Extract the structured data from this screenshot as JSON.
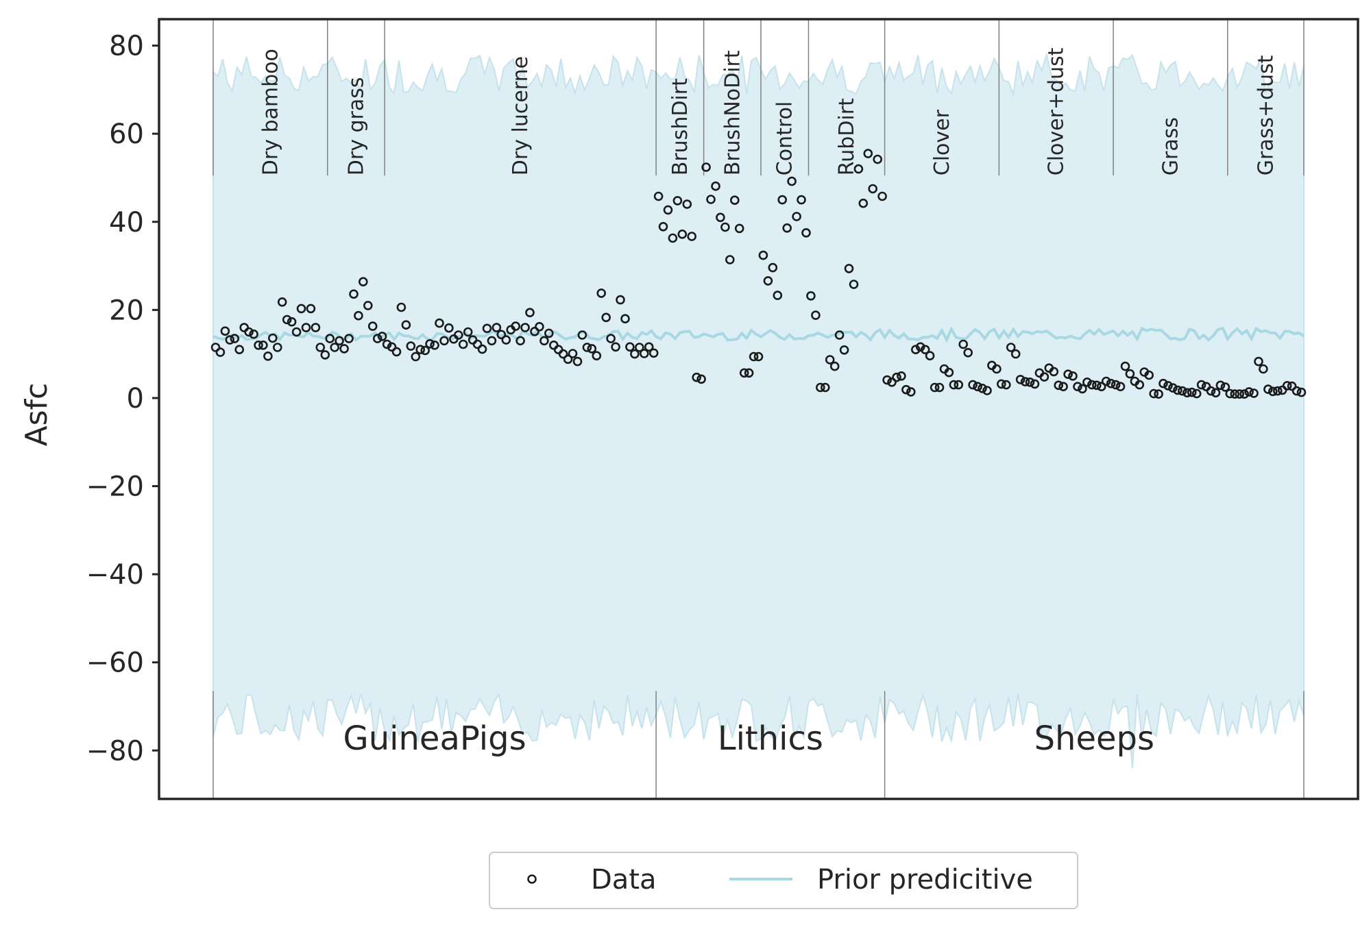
{
  "chart_data": {
    "type": "scatter",
    "ylabel": "Asfc",
    "xlabel": "",
    "ylim": [
      -91,
      86
    ],
    "yticks": [
      80,
      60,
      40,
      20,
      0,
      -20,
      -40,
      -60,
      -80
    ],
    "ytick_labels": [
      "80",
      "60",
      "40",
      "20",
      "0",
      "−20",
      "−40",
      "−60",
      "−80"
    ],
    "grid": false,
    "legend_placement": "bottom-center, below plot",
    "legend": {
      "data_label": "Data",
      "prior_label": "Prior predicitive"
    },
    "colors": {
      "band": "#ddeff5",
      "band_edge": "#c6e2ec",
      "line": "#a8d8e2",
      "points": "#1a1a1a",
      "axes": "#262626",
      "dividers": "#808080"
    },
    "groups": [
      {
        "name": "GuineaPigs",
        "subgroups": [
          {
            "name": "Dry bamboo",
            "values": [
              11.5,
              10.4,
              15.2,
              13.2,
              13.5,
              11.0,
              16.0,
              15.0,
              14.5,
              12.0,
              12.0,
              9.5,
              13.6,
              11.5,
              21.8,
              17.8,
              17.3,
              15.0,
              20.3,
              16.0,
              20.3,
              16.0,
              11.5,
              9.8
            ]
          },
          {
            "name": "Dry grass",
            "values": [
              13.5,
              11.5,
              13.0,
              11.2,
              13.5,
              23.6,
              18.7,
              26.4,
              21.0,
              16.3,
              13.5,
              14.0
            ]
          },
          {
            "name": "Dry lucerne",
            "values": [
              12.2,
              11.6,
              10.5,
              20.6,
              16.6,
              11.8,
              9.4,
              11.0,
              10.8,
              12.3,
              12.0,
              17.0,
              13.0,
              15.9,
              13.4,
              14.3,
              12.2,
              15.0,
              13.2,
              12.2,
              11.1,
              15.8,
              13.0,
              16.0,
              14.4,
              13.2,
              15.5,
              16.3,
              13.0,
              16.0,
              19.4,
              15.1,
              16.2,
              13.0,
              14.7,
              12.0,
              11.0,
              10.0,
              8.8,
              10.1,
              8.3,
              14.3,
              11.5,
              11.2,
              9.6,
              23.8,
              18.3,
              13.5,
              11.6,
              22.3,
              18.0,
              11.6,
              10.0,
              11.5,
              10.1,
              11.6,
              10.2
            ]
          }
        ]
      },
      {
        "name": "Lithics",
        "subgroups": [
          {
            "name": "BrushDirt",
            "values": [
              45.8,
              38.9,
              42.7,
              36.3,
              44.8,
              37.2,
              44.0,
              36.7,
              4.7,
              4.3
            ]
          },
          {
            "name": "BrushNoDirt",
            "values": [
              52.4,
              45.1,
              48.1,
              41.0,
              38.8,
              31.4,
              44.9,
              38.5,
              5.7,
              5.7,
              9.4,
              9.4
            ]
          },
          {
            "name": "Control",
            "values": [
              32.4,
              26.6,
              29.6,
              23.3,
              45.0,
              38.6,
              49.2,
              41.2,
              45.0,
              37.5
            ]
          },
          {
            "name": "RubDirt",
            "values": [
              23.2,
              18.8,
              2.4,
              2.4,
              8.7,
              7.2,
              14.3,
              10.9,
              29.4,
              25.8,
              52.0,
              44.2,
              55.5,
              47.5,
              54.2,
              45.8
            ]
          }
        ]
      },
      {
        "name": "Sheeps",
        "subgroups": [
          {
            "name": "Clover",
            "values": [
              4.1,
              3.6,
              4.7,
              5.0,
              1.9,
              1.4,
              11.0,
              11.6,
              11.0,
              9.6,
              2.4,
              2.4,
              6.6,
              5.8,
              3.0,
              3.0,
              12.2,
              10.3,
              3.0,
              2.6,
              2.2,
              1.7,
              7.4,
              6.6
            ]
          },
          {
            "name": "Clover+dust",
            "values": [
              3.2,
              3.0,
              11.5,
              10.0,
              4.2,
              3.7,
              3.6,
              3.2,
              5.7,
              4.8,
              6.8,
              6.0,
              2.9,
              2.6,
              5.4,
              5.0,
              2.6,
              2.1,
              3.6,
              3.0,
              2.9,
              2.6,
              3.8,
              3.3
            ]
          },
          {
            "name": "Grass",
            "values": [
              3.0,
              2.6,
              7.2,
              5.5,
              3.8,
              3.0,
              5.9,
              5.2,
              1.0,
              0.9,
              3.3,
              2.8,
              2.3,
              1.8,
              1.6,
              1.2,
              1.3,
              1.0,
              3.0,
              2.6,
              1.6,
              1.2,
              2.9,
              2.5
            ]
          },
          {
            "name": "Grass+dust",
            "values": [
              1.0,
              0.9,
              0.9,
              0.9,
              1.4,
              1.1,
              8.3,
              6.6,
              2.0,
              1.5,
              1.6,
              1.8,
              2.8,
              2.7,
              1.6,
              1.3
            ]
          }
        ]
      }
    ],
    "prior_predictive_mean_range": [
      12,
      16
    ],
    "prior_predictive_band_upper_range": [
      69,
      78
    ],
    "prior_predictive_band_lower_range": [
      -84,
      -67
    ]
  }
}
